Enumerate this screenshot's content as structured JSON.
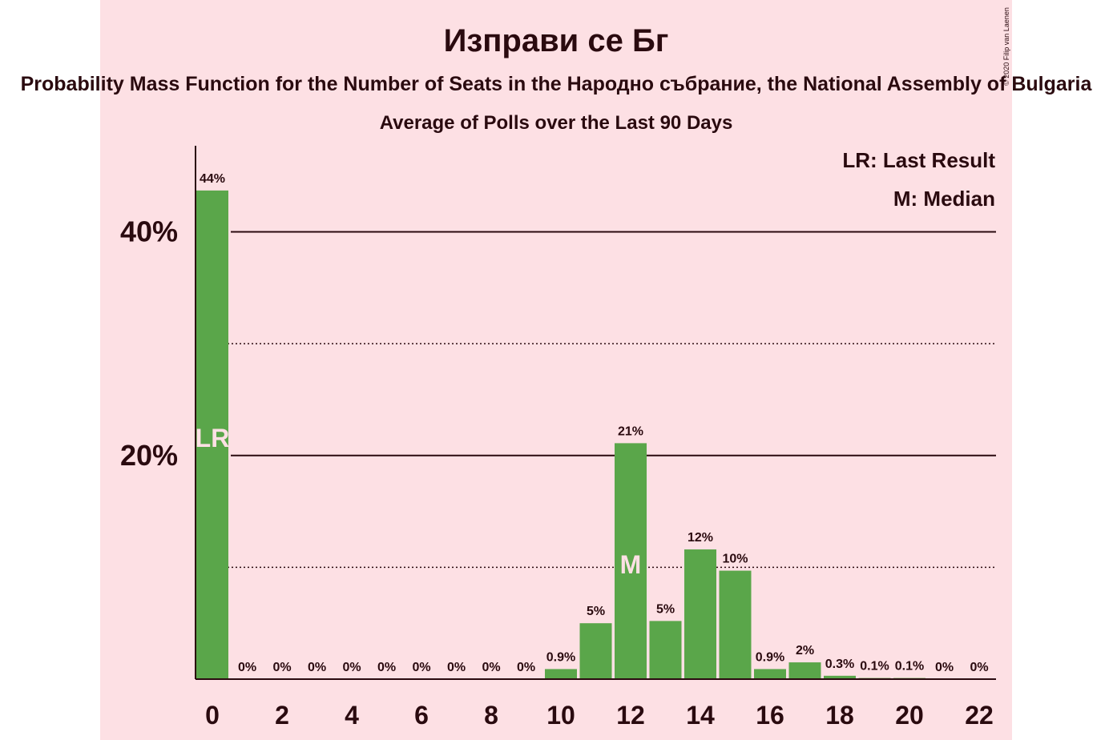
{
  "chart_data": {
    "type": "bar",
    "title": "Изправи се Бг",
    "subtitle": "Probability Mass Function for the Number of Seats in the Народно събрание, the National Assembly of Bulgaria",
    "subtitle2": "Average of Polls over the Last 90 Days",
    "copyright": "© 2020 Filip van Laenen",
    "legend": [
      "LR: Last Result",
      "M: Median"
    ],
    "legend_position": "top-right",
    "x": [
      0,
      1,
      2,
      3,
      4,
      5,
      6,
      7,
      8,
      9,
      10,
      11,
      12,
      13,
      14,
      15,
      16,
      17,
      18,
      19,
      20,
      21,
      22
    ],
    "values": [
      43.7,
      0,
      0,
      0,
      0,
      0,
      0,
      0,
      0,
      0,
      0.9,
      5.0,
      21.1,
      5.2,
      11.6,
      9.7,
      0.9,
      1.5,
      0.3,
      0.1,
      0.1,
      0,
      0
    ],
    "data_labels": [
      "44%",
      "0%",
      "0%",
      "0%",
      "0%",
      "0%",
      "0%",
      "0%",
      "0%",
      "0%",
      "0.9%",
      "5%",
      "21%",
      "5%",
      "12%",
      "10%",
      "0.9%",
      "2%",
      "0.3%",
      "0.1%",
      "0.1%",
      "0%",
      "0%"
    ],
    "bar_markers": [
      {
        "x": 0,
        "text": "LR"
      },
      {
        "x": 12,
        "text": "M"
      }
    ],
    "x_ticks": [
      0,
      2,
      4,
      6,
      8,
      10,
      12,
      14,
      16,
      18,
      20,
      22
    ],
    "y_ticks": [
      {
        "value": 20,
        "label": "20%"
      },
      {
        "value": 40,
        "label": "40%"
      }
    ],
    "y_minor_gridlines": [
      10,
      30
    ],
    "ylim": [
      0,
      47.7
    ],
    "xlabel": "",
    "ylabel": "",
    "colors": {
      "bar": "#5aa64a",
      "background": "#fde0e4",
      "text": "#2a0a0f",
      "marker_text": "#fde0e4"
    }
  }
}
